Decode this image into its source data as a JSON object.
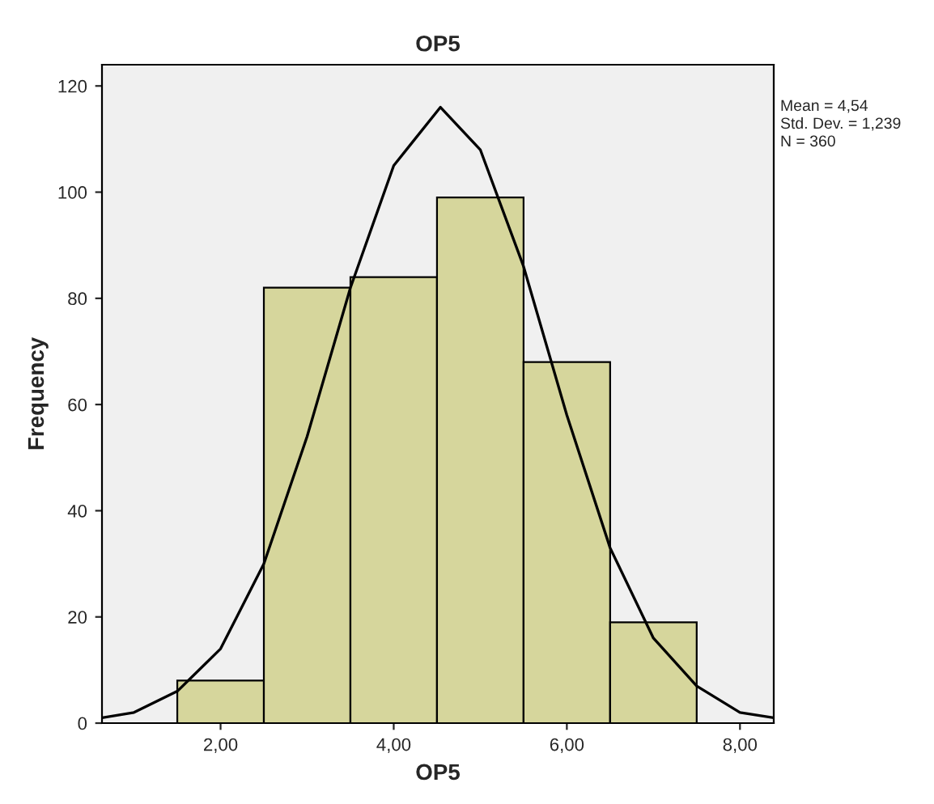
{
  "chart_data": {
    "type": "histogram",
    "title": "OP5",
    "xlabel": "OP5",
    "ylabel": "Frequency",
    "bins": [
      1.5,
      2.5,
      3.5,
      4.5,
      5.5,
      6.5,
      7.5
    ],
    "values": [
      8,
      82,
      84,
      99,
      68,
      19
    ],
    "color": "#d6d69c",
    "series": [
      {
        "type": "line",
        "color": "#000000",
        "x": [
          0.63,
          1,
          1.5,
          2,
          2.5,
          3,
          3.5,
          4,
          4.54,
          5,
          5.5,
          6,
          6.5,
          7,
          7.5,
          8,
          8.39
        ],
        "values": [
          1,
          2,
          6,
          14,
          30,
          54,
          82,
          105,
          116,
          108,
          86,
          58,
          33,
          16,
          7,
          2,
          1
        ]
      }
    ],
    "xlim": [
      0.63,
      8.39
    ],
    "xticks": [
      {
        "value": 2,
        "label": "2,00"
      },
      {
        "value": 4,
        "label": "4,00"
      },
      {
        "value": 6,
        "label": "6,00"
      },
      {
        "value": 8,
        "label": "8,00"
      }
    ],
    "ylim": [
      0,
      124
    ],
    "yticks": [
      0,
      20,
      40,
      60,
      80,
      100,
      120
    ],
    "grid": false,
    "legend": false,
    "annotations": [
      "Mean = 4,54",
      "Std. Dev. = 1,239",
      "N = 360"
    ]
  }
}
